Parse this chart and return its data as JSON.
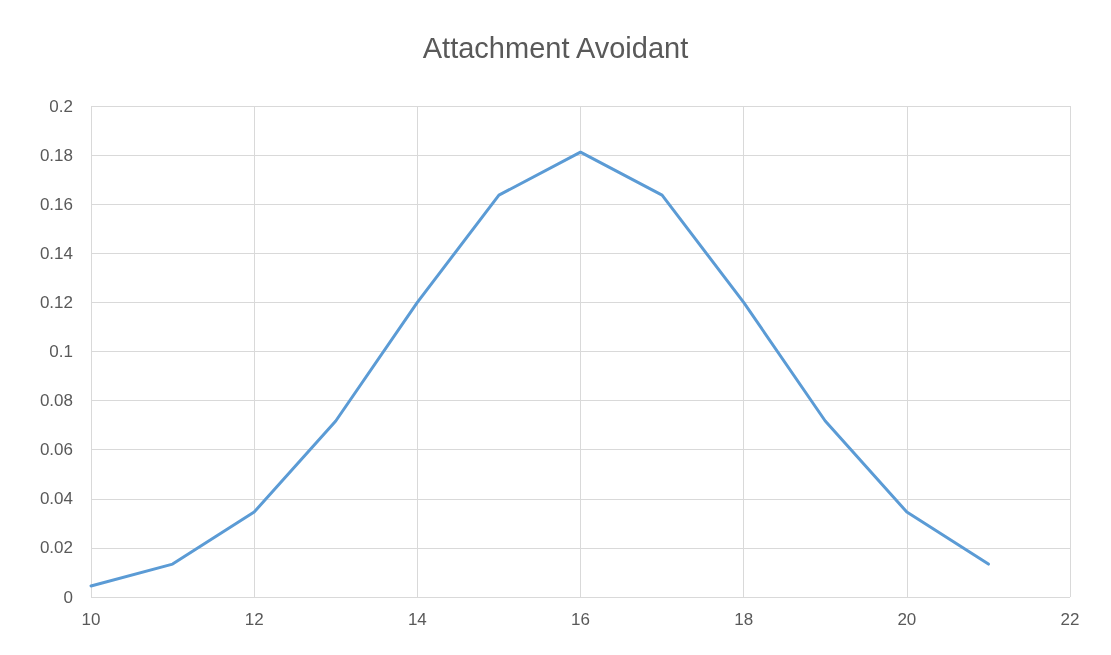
{
  "chart_data": {
    "type": "line",
    "title": "Attachment Avoidant",
    "x": [
      10,
      11,
      12,
      13,
      14,
      15,
      16,
      17,
      18,
      19,
      20,
      21
    ],
    "series": [
      {
        "color": "#5b9bd5",
        "values": [
          0.0045,
          0.0134,
          0.0346,
          0.0717,
          0.12,
          0.1637,
          0.1812,
          0.1637,
          0.12,
          0.0717,
          0.0346,
          0.0134
        ]
      }
    ],
    "xlim": [
      10,
      22
    ],
    "xticks": [
      10,
      12,
      14,
      16,
      18,
      20,
      22
    ],
    "ylim": [
      0,
      0.2
    ],
    "yticks": [
      0,
      0.02,
      0.04,
      0.06,
      0.08,
      0.1,
      0.12,
      0.14,
      0.16,
      0.18,
      0.2
    ],
    "grid": true,
    "marker": "none",
    "line_style": "solid"
  }
}
